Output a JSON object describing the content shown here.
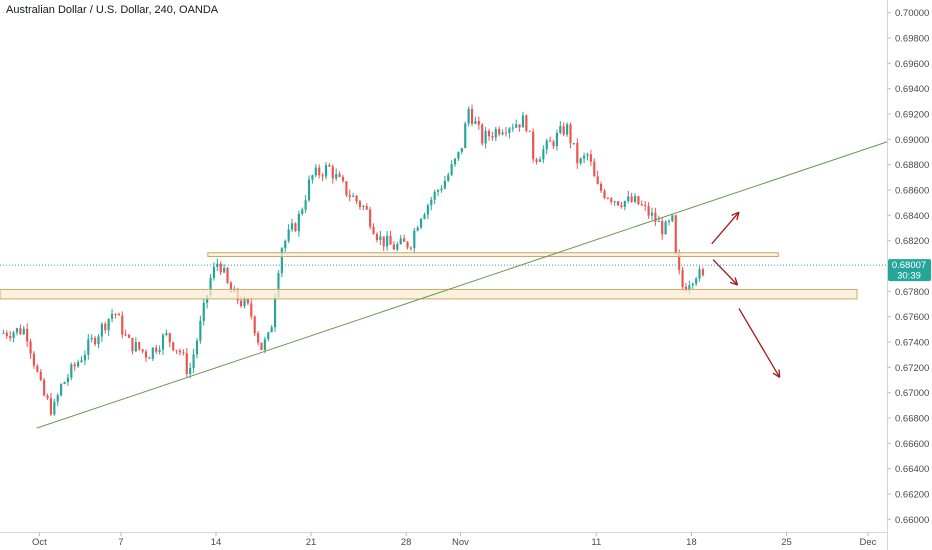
{
  "chart_data": {
    "type": "candlestick",
    "title": "Australian Dollar / U.S. Dollar, 240, OANDA",
    "ylim": [
      0.659,
      0.701
    ],
    "y_ticks": [
      "0.70000",
      "0.69800",
      "0.69600",
      "0.69400",
      "0.69200",
      "0.69000",
      "0.68800",
      "0.68600",
      "0.68400",
      "0.68200",
      "0.67800",
      "0.67600",
      "0.67400",
      "0.67200",
      "0.67000",
      "0.66800",
      "0.66600",
      "0.66400",
      "0.66200",
      "0.66000"
    ],
    "x_ticks": [
      {
        "label": "Oct",
        "day": 1
      },
      {
        "label": "7",
        "day": 7
      },
      {
        "label": "14",
        "day": 14
      },
      {
        "label": "21",
        "day": 21
      },
      {
        "label": "28",
        "day": 28
      },
      {
        "label": "Nov",
        "day": 32
      },
      {
        "label": "11",
        "day": 42
      },
      {
        "label": "18",
        "day": 49
      },
      {
        "label": "25",
        "day": 56
      },
      {
        "label": "Dec",
        "day": 62
      }
    ],
    "x_range_days": [
      -1.9,
      63.4
    ],
    "price_anchors": [
      [
        -1.9,
        0.6747
      ],
      [
        0,
        0.675
      ],
      [
        1.2,
        0.67
      ],
      [
        2,
        0.6685
      ],
      [
        2.6,
        0.6705
      ],
      [
        4.5,
        0.6735
      ],
      [
        6.5,
        0.6765
      ],
      [
        7.5,
        0.674
      ],
      [
        9,
        0.673
      ],
      [
        10.3,
        0.6745
      ],
      [
        11.4,
        0.6732
      ],
      [
        12,
        0.6715
      ],
      [
        13,
        0.676
      ],
      [
        13.6,
        0.679
      ],
      [
        14.2,
        0.6805
      ],
      [
        15,
        0.678
      ],
      [
        16.5,
        0.6765
      ],
      [
        17.3,
        0.6735
      ],
      [
        18,
        0.6745
      ],
      [
        18.4,
        0.6785
      ],
      [
        18.8,
        0.6815
      ],
      [
        20,
        0.6835
      ],
      [
        21,
        0.687
      ],
      [
        22.3,
        0.6878
      ],
      [
        23.5,
        0.686
      ],
      [
        25,
        0.6845
      ],
      [
        26,
        0.6822
      ],
      [
        27,
        0.6815
      ],
      [
        28.3,
        0.6818
      ],
      [
        29,
        0.684
      ],
      [
        30,
        0.6855
      ],
      [
        31,
        0.687
      ],
      [
        32,
        0.689
      ],
      [
        32.6,
        0.6924
      ],
      [
        33.6,
        0.69
      ],
      [
        35,
        0.691
      ],
      [
        36.8,
        0.6915
      ],
      [
        37.4,
        0.6885
      ],
      [
        38.5,
        0.6895
      ],
      [
        39.8,
        0.691
      ],
      [
        40.7,
        0.688
      ],
      [
        41.4,
        0.6888
      ],
      [
        42,
        0.6862
      ],
      [
        43.5,
        0.6852
      ],
      [
        45,
        0.685
      ],
      [
        46.2,
        0.6838
      ],
      [
        47,
        0.6828
      ],
      [
        47.6,
        0.6835
      ],
      [
        47.9,
        0.68
      ],
      [
        48.4,
        0.6782
      ],
      [
        48.9,
        0.679
      ],
      [
        49.4,
        0.6795
      ],
      [
        49.9,
        0.6789
      ]
    ],
    "annotations": {
      "trendline": [
        {
          "day": 0.8,
          "price": 0.6672
        },
        {
          "day": 63.4,
          "price": 0.6898
        }
      ],
      "upper_zone": {
        "day_start": 13.4,
        "day_end": 55.4,
        "price_top": 0.68105,
        "price_bottom": 0.68075
      },
      "lower_zone": {
        "day_start": -1.9,
        "day_end": 62.5,
        "price_top": 0.67815,
        "price_bottom": 0.6774
      },
      "arrows": [
        {
          "from": [
            50.5,
            0.68175
          ],
          "to": [
            52.5,
            0.68425
          ]
        },
        {
          "from": [
            50.6,
            0.6805
          ],
          "to": [
            52.4,
            0.6785
          ]
        },
        {
          "from": [
            52.5,
            0.67665
          ],
          "to": [
            55.5,
            0.6712
          ]
        }
      ]
    },
    "current_price": {
      "value": "0.68007",
      "countdown": "30:39",
      "level": 0.68007
    },
    "colors": {
      "up": "#26a69a",
      "down": "#ef5350",
      "trendline": "#6a9a4a",
      "zone_fill": "#faecd2",
      "zone_stroke": "#c9a96e",
      "arrow": "#a21b1b",
      "price_tag": "#26a69a",
      "price_line": "#26a69a"
    }
  }
}
